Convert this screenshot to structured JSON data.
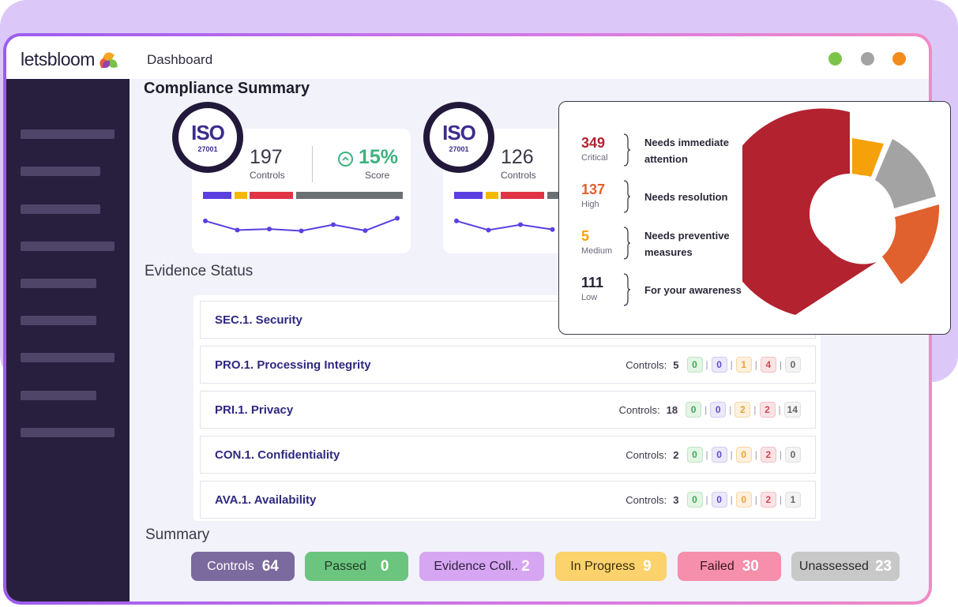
{
  "app": {
    "logo_text": "letsbloom",
    "page_label": "Dashboard",
    "window_dots": [
      "#7bc44a",
      "#a3a3a3",
      "#f28c1c"
    ]
  },
  "compliance": {
    "title": "Compliance Summary",
    "cards": [
      {
        "badge_text": "ISO",
        "badge_number": "27001",
        "controls_value": "197",
        "controls_label": "Controls",
        "score_value": "15%",
        "score_label": "Score",
        "trend": [
          0.62,
          0.28,
          0.32,
          0.25,
          0.48,
          0.26,
          0.72
        ]
      },
      {
        "badge_text": "ISO",
        "badge_number": "27001",
        "controls_value": "126",
        "controls_label": "Controls",
        "trend": [
          0.62,
          0.28,
          0.48,
          0.3
        ]
      }
    ],
    "bar_colors": [
      "#5b3fe0",
      "#f5b800",
      "#e03544",
      "#6b7073"
    ]
  },
  "evidence": {
    "title": "Evidence Status",
    "controls_label": "Controls:",
    "rows": [
      {
        "name": "SEC.1. Security"
      },
      {
        "name": "PRO.1. Processing Integrity",
        "count": "5",
        "pills": [
          "0",
          "0",
          "1",
          "4",
          "0"
        ]
      },
      {
        "name": "PRI.1. Privacy",
        "count": "18",
        "pills": [
          "0",
          "0",
          "2",
          "2",
          "14"
        ]
      },
      {
        "name": "CON.1. Confidentiality",
        "count": "2",
        "pills": [
          "0",
          "0",
          "0",
          "2",
          "0"
        ]
      },
      {
        "name": "AVA.1. Availability",
        "count": "3",
        "pills": [
          "0",
          "0",
          "0",
          "2",
          "1"
        ]
      }
    ]
  },
  "summary": {
    "title": "Summary",
    "items": [
      {
        "label": "Controls",
        "value": "64",
        "color": "#7b6a9e",
        "text_color": "#ffffff"
      },
      {
        "label": "Passed",
        "value": "0",
        "color": "#6cc57e",
        "text_color": "#1f3a24"
      },
      {
        "label": "Evidence Coll..",
        "value": "2",
        "color": "#d7a6f2",
        "text_color": "#2f2240"
      },
      {
        "label": "In Progress",
        "value": "9",
        "color": "#fbd26b",
        "text_color": "#3a2c10"
      },
      {
        "label": "Failed",
        "value": "30",
        "color": "#f58fab",
        "text_color": "#3a1520"
      },
      {
        "label": "Unassessed",
        "value": "23",
        "color": "#c8c8c8",
        "text_color": "#2a2a2a"
      }
    ]
  },
  "risk": {
    "items": [
      {
        "value": "349",
        "level": "Critical",
        "desc1": "Needs immediate",
        "desc2": "attention",
        "color": "#b3222f"
      },
      {
        "value": "137",
        "level": "High",
        "desc1": "Needs resolution",
        "desc2": "",
        "color": "#e0602e"
      },
      {
        "value": "5",
        "level": "Medium",
        "desc1": "Needs preventive",
        "desc2": "measures",
        "color": "#f5a10a"
      },
      {
        "value": "111",
        "level": "Low",
        "desc1": "For your awareness",
        "desc2": "",
        "color": "#262434"
      }
    ],
    "donut_colors": [
      "#b3222f",
      "#e0602e",
      "#a3a3a3",
      "#f5a10a"
    ]
  }
}
